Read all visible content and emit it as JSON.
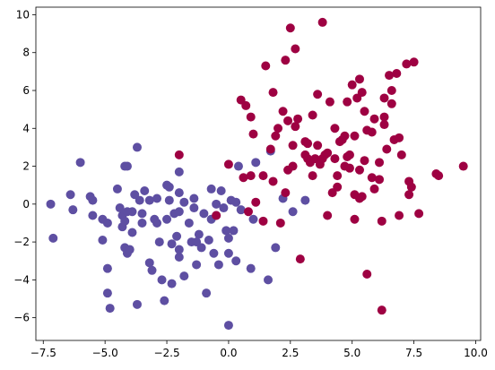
{
  "chart_data": {
    "type": "scatter",
    "title": "",
    "xlabel": "",
    "ylabel": "",
    "xlim": [
      -7.8,
      10.2
    ],
    "ylim": [
      -7.2,
      10.4
    ],
    "xticks": [
      -7.5,
      -5.0,
      -2.5,
      0.0,
      2.5,
      5.0,
      7.5,
      10.0
    ],
    "xtick_labels": [
      "−7.5",
      "−5.0",
      "−2.5",
      "0.0",
      "2.5",
      "5.0",
      "7.5",
      "10.0"
    ],
    "yticks": [
      -6,
      -4,
      -2,
      0,
      2,
      4,
      6,
      8,
      10
    ],
    "ytick_labels": [
      "−6",
      "−4",
      "−2",
      "0",
      "2",
      "4",
      "6",
      "8",
      "10"
    ],
    "grid": false,
    "series": [
      {
        "color": "#5E4FA2",
        "points": [
          [
            -7.2,
            0.0
          ],
          [
            -7.1,
            -1.8
          ],
          [
            -6.4,
            0.5
          ],
          [
            -6.3,
            -0.3
          ],
          [
            -6.0,
            2.2
          ],
          [
            -5.6,
            0.4
          ],
          [
            -5.5,
            0.2
          ],
          [
            -5.5,
            -0.6
          ],
          [
            -5.1,
            -0.8
          ],
          [
            -5.1,
            -1.9
          ],
          [
            -4.9,
            -3.4
          ],
          [
            -4.9,
            -4.7
          ],
          [
            -4.8,
            -5.5
          ],
          [
            -4.9,
            -1.0
          ],
          [
            -4.5,
            0.8
          ],
          [
            -4.4,
            -0.2
          ],
          [
            -4.3,
            -0.6
          ],
          [
            -4.3,
            -1.2
          ],
          [
            -4.2,
            2.0
          ],
          [
            -4.1,
            2.0
          ],
          [
            -4.2,
            -2.3
          ],
          [
            -4.1,
            -2.6
          ],
          [
            -4.0,
            -2.4
          ],
          [
            -3.9,
            -0.4
          ],
          [
            -4.1,
            -0.4
          ],
          [
            -4.2,
            -0.9
          ],
          [
            -3.9,
            -1.5
          ],
          [
            -3.8,
            0.5
          ],
          [
            -3.7,
            3.0
          ],
          [
            -3.6,
            0.2
          ],
          [
            -3.5,
            -0.5
          ],
          [
            -3.5,
            -1.0
          ],
          [
            -3.7,
            -5.3
          ],
          [
            -3.4,
            0.7
          ],
          [
            -3.2,
            0.2
          ],
          [
            -3.2,
            -3.1
          ],
          [
            -3.1,
            -3.5
          ],
          [
            -3.0,
            -0.8
          ],
          [
            -2.9,
            0.3
          ],
          [
            -2.9,
            -1.0
          ],
          [
            -2.8,
            -2.0
          ],
          [
            -2.7,
            -4.0
          ],
          [
            -2.6,
            -5.1
          ],
          [
            -2.5,
            1.0
          ],
          [
            -2.5,
            -0.8
          ],
          [
            -2.4,
            0.9
          ],
          [
            -2.4,
            0.2
          ],
          [
            -2.3,
            -2.1
          ],
          [
            -2.3,
            -4.2
          ],
          [
            -2.2,
            -0.5
          ],
          [
            -2.1,
            -1.7
          ],
          [
            -2.0,
            1.7
          ],
          [
            -2.0,
            0.6
          ],
          [
            -2.0,
            -0.4
          ],
          [
            -2.0,
            -2.4
          ],
          [
            -2.0,
            -2.8
          ],
          [
            -1.8,
            0.1
          ],
          [
            -1.8,
            -3.8
          ],
          [
            -1.6,
            -1.0
          ],
          [
            -1.5,
            -2.0
          ],
          [
            -1.4,
            0.3
          ],
          [
            -1.4,
            -0.2
          ],
          [
            -1.3,
            -2.0
          ],
          [
            -1.3,
            -3.2
          ],
          [
            -1.2,
            -1.6
          ],
          [
            -1.1,
            -2.3
          ],
          [
            -1.0,
            -0.5
          ],
          [
            -0.9,
            -4.7
          ],
          [
            -0.8,
            -1.9
          ],
          [
            -0.7,
            0.8
          ],
          [
            -0.7,
            -0.8
          ],
          [
            -0.6,
            -2.6
          ],
          [
            -0.5,
            0.0
          ],
          [
            -0.5,
            -0.6
          ],
          [
            -0.4,
            -3.2
          ],
          [
            -0.3,
            0.7
          ],
          [
            -0.2,
            -0.2
          ],
          [
            -0.1,
            -1.4
          ],
          [
            0.0,
            -1.8
          ],
          [
            0.0,
            -2.6
          ],
          [
            0.0,
            -6.4
          ],
          [
            0.1,
            0.2
          ],
          [
            0.2,
            -1.4
          ],
          [
            0.3,
            -3.0
          ],
          [
            0.3,
            0.1
          ],
          [
            0.4,
            2.0
          ],
          [
            0.5,
            -0.3
          ],
          [
            0.9,
            -3.4
          ],
          [
            1.0,
            -0.8
          ],
          [
            1.1,
            2.2
          ],
          [
            1.6,
            -4.0
          ],
          [
            1.7,
            2.8
          ],
          [
            1.9,
            -2.3
          ],
          [
            2.2,
            0.3
          ],
          [
            2.6,
            -0.4
          ],
          [
            3.1,
            0.2
          ]
        ]
      },
      {
        "color": "#9E0142",
        "points": [
          [
            -2.0,
            2.6
          ],
          [
            -0.5,
            -0.6
          ],
          [
            0.0,
            2.1
          ],
          [
            0.5,
            5.5
          ],
          [
            0.6,
            1.4
          ],
          [
            0.7,
            5.2
          ],
          [
            0.8,
            -0.4
          ],
          [
            0.9,
            4.6
          ],
          [
            0.9,
            1.5
          ],
          [
            1.0,
            3.7
          ],
          [
            1.1,
            0.1
          ],
          [
            1.4,
            1.5
          ],
          [
            1.4,
            -0.9
          ],
          [
            1.5,
            7.3
          ],
          [
            1.7,
            2.9
          ],
          [
            1.8,
            1.2
          ],
          [
            1.8,
            5.9
          ],
          [
            1.9,
            3.6
          ],
          [
            2.0,
            4.0
          ],
          [
            2.1,
            -1.0
          ],
          [
            2.2,
            4.9
          ],
          [
            2.3,
            7.6
          ],
          [
            2.3,
            0.6
          ],
          [
            2.4,
            4.4
          ],
          [
            2.4,
            1.8
          ],
          [
            2.5,
            9.3
          ],
          [
            2.6,
            3.1
          ],
          [
            2.6,
            2.0
          ],
          [
            2.7,
            4.1
          ],
          [
            2.7,
            8.2
          ],
          [
            2.8,
            4.5
          ],
          [
            2.9,
            -2.9
          ],
          [
            3.1,
            3.3
          ],
          [
            3.1,
            2.6
          ],
          [
            3.2,
            2.4
          ],
          [
            3.2,
            3.2
          ],
          [
            3.3,
            2.2
          ],
          [
            3.4,
            4.7
          ],
          [
            3.4,
            1.5
          ],
          [
            3.5,
            2.4
          ],
          [
            3.6,
            5.8
          ],
          [
            3.6,
            3.1
          ],
          [
            3.7,
            2.1
          ],
          [
            3.8,
            2.4
          ],
          [
            3.8,
            9.6
          ],
          [
            3.9,
            2.6
          ],
          [
            4.0,
            2.7
          ],
          [
            4.0,
            -0.6
          ],
          [
            4.1,
            5.4
          ],
          [
            4.2,
            0.6
          ],
          [
            4.3,
            4.0
          ],
          [
            4.3,
            2.4
          ],
          [
            4.4,
            1.5
          ],
          [
            4.4,
            0.9
          ],
          [
            4.5,
            3.3
          ],
          [
            4.6,
            3.4
          ],
          [
            4.7,
            2.0
          ],
          [
            4.7,
            3.6
          ],
          [
            4.8,
            2.5
          ],
          [
            4.8,
            5.4
          ],
          [
            4.9,
            2.6
          ],
          [
            4.9,
            1.9
          ],
          [
            5.0,
            6.3
          ],
          [
            5.1,
            3.6
          ],
          [
            5.1,
            0.5
          ],
          [
            5.1,
            -0.8
          ],
          [
            5.2,
            5.6
          ],
          [
            5.3,
            6.6
          ],
          [
            5.3,
            1.8
          ],
          [
            5.3,
            0.3
          ],
          [
            5.4,
            5.9
          ],
          [
            5.4,
            0.4
          ],
          [
            5.5,
            4.9
          ],
          [
            5.5,
            2.3
          ],
          [
            5.6,
            3.9
          ],
          [
            5.6,
            -3.7
          ],
          [
            5.8,
            3.8
          ],
          [
            5.8,
            1.4
          ],
          [
            5.9,
            4.5
          ],
          [
            5.9,
            0.8
          ],
          [
            6.1,
            1.3
          ],
          [
            6.1,
            2.2
          ],
          [
            6.2,
            -0.9
          ],
          [
            6.2,
            -5.6
          ],
          [
            6.3,
            4.6
          ],
          [
            6.3,
            4.2
          ],
          [
            6.3,
            5.6
          ],
          [
            6.4,
            2.9
          ],
          [
            6.5,
            6.8
          ],
          [
            6.6,
            6.0
          ],
          [
            6.6,
            5.3
          ],
          [
            6.7,
            3.4
          ],
          [
            6.8,
            6.9
          ],
          [
            6.9,
            3.5
          ],
          [
            6.9,
            -0.6
          ],
          [
            7.0,
            2.6
          ],
          [
            7.2,
            7.4
          ],
          [
            7.3,
            1.2
          ],
          [
            7.3,
            0.5
          ],
          [
            7.4,
            0.9
          ],
          [
            7.5,
            7.5
          ],
          [
            7.7,
            -0.5
          ],
          [
            8.4,
            1.6
          ],
          [
            8.5,
            1.5
          ],
          [
            9.5,
            2.0
          ]
        ]
      }
    ]
  }
}
